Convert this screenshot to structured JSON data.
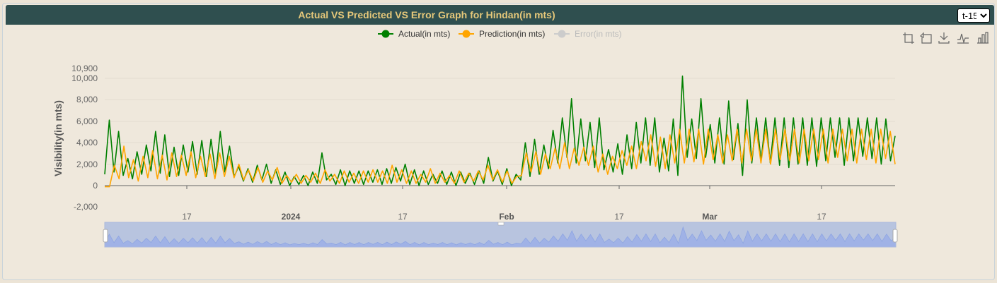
{
  "header": {
    "title": "Actual VS Predicted VS Error Graph for Hindan(in mts)",
    "select_options": [
      "t-15"
    ],
    "selected": "t-15"
  },
  "toolbox": {
    "icons": [
      "zoom-area-icon",
      "zoom-reset-icon",
      "save-image-icon",
      "line-view-icon",
      "bar-view-icon"
    ]
  },
  "chart_data": {
    "type": "line",
    "ylabel": "Visibility(in mts)",
    "ylim": [
      -2000,
      10900
    ],
    "yticks": [
      "10,900",
      "10,000",
      "8,000",
      "6,000",
      "4,000",
      "2,000",
      "0",
      "-2,000"
    ],
    "xticks": [
      {
        "label": "17",
        "bold": false
      },
      {
        "label": "2024",
        "bold": true
      },
      {
        "label": "17",
        "bold": false
      },
      {
        "label": "Feb",
        "bold": true
      },
      {
        "label": "17",
        "bold": false
      },
      {
        "label": "Mar",
        "bold": true
      },
      {
        "label": "17",
        "bold": false
      }
    ],
    "legend": [
      {
        "name": "Actual(in mts)",
        "color": "#008000",
        "active": true
      },
      {
        "name": "Prediction(in mts)",
        "color": "#ffa500",
        "active": true
      },
      {
        "name": "Error(in mts)",
        "color": "#cccccc",
        "active": false
      }
    ],
    "series": [
      {
        "name": "Actual(in mts)",
        "color": "#008000",
        "values": [
          1000,
          5800,
          1200,
          4800,
          900,
          2400,
          600,
          3000,
          1000,
          3600,
          1300,
          4800,
          1100,
          4500,
          800,
          3400,
          900,
          3600,
          1200,
          3900,
          1000,
          4000,
          800,
          4100,
          1000,
          4800,
          1200,
          3500,
          800,
          1700,
          400,
          1500,
          300,
          1800,
          500,
          1900,
          200,
          1400,
          100,
          1200,
          0,
          800,
          100,
          900,
          0,
          1200,
          200,
          2900,
          500,
          1000,
          100,
          1400,
          0,
          1300,
          200,
          1300,
          100,
          1300,
          300,
          1400,
          100,
          1500,
          200,
          1600,
          400,
          1900,
          100,
          1400,
          0,
          1300,
          100,
          1000,
          200,
          1300,
          100,
          1200,
          0,
          1200,
          200,
          1100,
          100,
          1300,
          200,
          2500,
          400,
          1300,
          100,
          1500,
          0,
          1000,
          500,
          3800,
          800,
          4100,
          1000,
          3600,
          1500,
          4900,
          2000,
          6000,
          2500,
          7700,
          2000,
          5900,
          2200,
          5600,
          1600,
          6000,
          1400,
          3200,
          1200,
          3700,
          1000,
          4500,
          1500,
          5600,
          2000,
          6000,
          1800,
          6000,
          1200,
          4200,
          1300,
          5900,
          900,
          9700,
          2500,
          5900,
          2400,
          7700,
          2500,
          5400,
          2000,
          6000,
          1900,
          7500,
          2300,
          5500,
          900,
          7600,
          2000,
          6000,
          2200,
          6000,
          2000,
          6000,
          1800,
          6000,
          1600,
          6000,
          1900,
          6000,
          1800,
          6000,
          1700,
          6000,
          2200,
          6000,
          2500,
          6000,
          1800,
          6000,
          2200,
          6000,
          2600,
          6000,
          2400,
          6000,
          1900,
          5900,
          2200,
          4400
        ]
      },
      {
        "name": "Prediction(in mts)",
        "color": "#ffa500",
        "values": [
          -100,
          -100,
          1800,
          600,
          3500,
          700,
          2300,
          400,
          2600,
          700,
          3100,
          600,
          2700,
          500,
          2900,
          800,
          2700,
          900,
          3000,
          700,
          2600,
          800,
          2800,
          600,
          2900,
          800,
          2600,
          700,
          1900,
          500,
          1400,
          400,
          1600,
          300,
          1300,
          500,
          1600,
          200,
          900,
          300,
          1000,
          200,
          900,
          300,
          1100,
          200,
          1400,
          400,
          1000,
          200,
          1300,
          300,
          1100,
          200,
          1300,
          300,
          1400,
          300,
          1300,
          200,
          1800,
          300,
          1400,
          200,
          1300,
          200,
          1000,
          300,
          1500,
          200,
          1100,
          300,
          900,
          200,
          1300,
          300,
          1100,
          400,
          1300,
          500,
          1800,
          500,
          1400,
          300,
          1300,
          200,
          800,
          900,
          2900,
          1200,
          3000,
          1000,
          2800,
          1500,
          3300,
          1500,
          3800,
          1500,
          3300,
          1800,
          3400,
          1800,
          3500,
          1200,
          2800,
          1000,
          2600,
          1500,
          3100,
          1800,
          3500,
          1500,
          3900,
          2200,
          4500,
          1700,
          4300,
          1500,
          4500,
          2000,
          5000,
          2000,
          5000,
          2100,
          5000,
          1900,
          5000,
          2300,
          4500,
          2000,
          4500,
          2200,
          5000,
          2000,
          5000,
          2200,
          5000,
          2000,
          5000,
          1900,
          5000,
          2300,
          5000,
          2200,
          5000,
          2000,
          5000,
          2200,
          5000,
          2300,
          5000,
          2000,
          5000,
          2500,
          5000,
          2200,
          5000,
          2000,
          5000,
          2300,
          5000,
          2000,
          5000,
          2400,
          4800,
          1900
        ]
      }
    ]
  }
}
